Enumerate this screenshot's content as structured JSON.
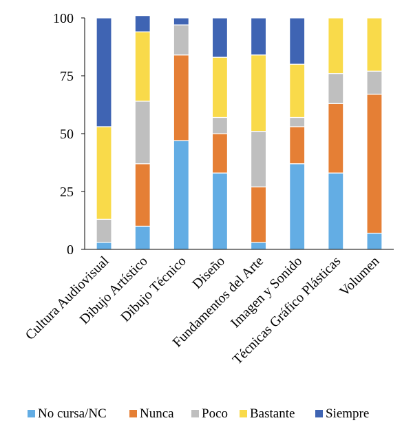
{
  "chart_data": {
    "type": "bar",
    "stacked": true,
    "categories": [
      "Cultura Audiovisual",
      "Dibujo Artístico",
      "Dibujo Técnico",
      "Diseño",
      "Fundamentos del Arte",
      "Imagen y Sonido",
      "Técnicas Gráfico Plásticas",
      "Volumen"
    ],
    "series": [
      {
        "name": "No cursa/NC",
        "color": "#63ADE4",
        "values": [
          3,
          10,
          47,
          33,
          3,
          37,
          33,
          7
        ]
      },
      {
        "name": "Nunca",
        "color": "#E57F35",
        "values": [
          0,
          27,
          37,
          17,
          24,
          16,
          30,
          60
        ]
      },
      {
        "name": "Poco",
        "color": "#BFBFBF",
        "values": [
          10,
          27,
          13,
          7,
          24,
          4,
          13,
          10
        ]
      },
      {
        "name": "Bastante",
        "color": "#F9DA4A",
        "values": [
          40,
          30,
          0,
          26,
          33,
          23,
          24,
          23
        ]
      },
      {
        "name": "Siempre",
        "color": "#3F64B3",
        "values": [
          47,
          7,
          3,
          17,
          16,
          20,
          0,
          0
        ]
      }
    ],
    "yticks": [
      0,
      25,
      50,
      75,
      100
    ],
    "ylim": [
      0,
      100
    ],
    "title": "",
    "xlabel": "",
    "ylabel": "",
    "legend_position": "bottom",
    "grid": false
  }
}
